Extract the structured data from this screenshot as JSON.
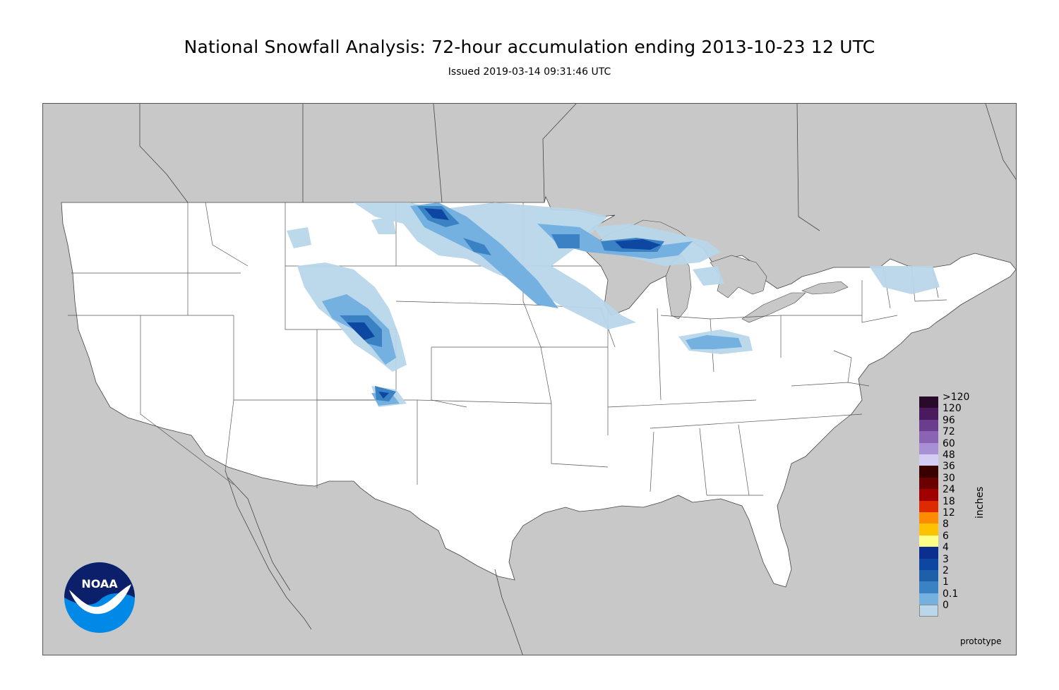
{
  "header": {
    "title": "National Snowfall Analysis: 72-hour accumulation ending 2013-10-23 12 UTC",
    "subtitle": "Issued 2019-03-14 09:31:46 UTC"
  },
  "map": {
    "background_color": "#c8c8c8",
    "land_color": "#ffffff",
    "border_color": "#444444"
  },
  "legend": {
    "units": "inches",
    "entries": [
      {
        "label": ">120",
        "color": "#2a0a2a"
      },
      {
        "label": "120",
        "color": "#4b1a5e"
      },
      {
        "label": "96",
        "color": "#6a3d8f"
      },
      {
        "label": "72",
        "color": "#8b63b5"
      },
      {
        "label": "60",
        "color": "#a98fd6"
      },
      {
        "label": "48",
        "color": "#d4ccf5"
      },
      {
        "label": "36",
        "color": "#3a0000"
      },
      {
        "label": "30",
        "color": "#6b0000"
      },
      {
        "label": "24",
        "color": "#a00000"
      },
      {
        "label": "18",
        "color": "#dd2a00"
      },
      {
        "label": "12",
        "color": "#ff8c00"
      },
      {
        "label": "8",
        "color": "#ffc200"
      },
      {
        "label": "6",
        "color": "#ffff88"
      },
      {
        "label": "4",
        "color": "#0c2f8f"
      },
      {
        "label": "3",
        "color": "#0d47a1"
      },
      {
        "label": "2",
        "color": "#1d5fa8"
      },
      {
        "label": "1",
        "color": "#3b82c4"
      },
      {
        "label": "0.1",
        "color": "#74b0e0"
      },
      {
        "label": "0",
        "color": "#b9d6ea"
      }
    ],
    "extra_swatches": [
      "#e4eef6",
      "#ffffff"
    ]
  },
  "footer": {
    "tag": "prototype"
  },
  "logo": {
    "text": "NOAA",
    "icon": "noaa-logo-icon"
  }
}
